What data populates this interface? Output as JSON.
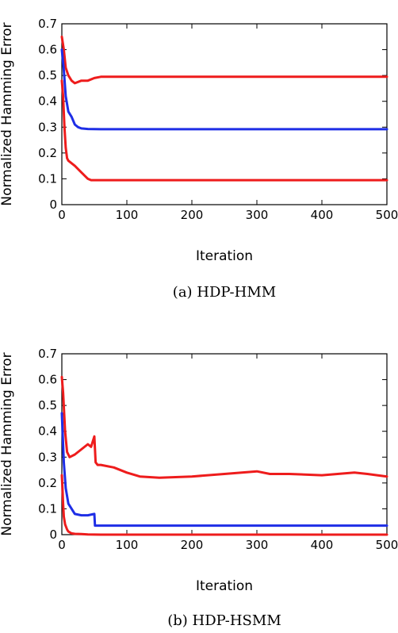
{
  "chart_data": [
    {
      "type": "line",
      "caption": "(a) HDP-HMM",
      "xlabel": "Iteration",
      "ylabel": "Normalized Hamming Error",
      "xlim": [
        0,
        500
      ],
      "ylim": [
        0,
        0.7
      ],
      "xticks": [
        0,
        100,
        200,
        300,
        400,
        500
      ],
      "yticks": [
        0,
        0.1,
        0.2,
        0.3,
        0.4,
        0.5,
        0.6,
        0.7
      ],
      "grid": false,
      "series": [
        {
          "color": "#ee1c1c",
          "x": [
            0,
            3,
            6,
            10,
            15,
            20,
            30,
            40,
            50,
            60,
            70,
            100,
            200,
            300,
            400,
            500
          ],
          "y": [
            0.65,
            0.6,
            0.53,
            0.5,
            0.48,
            0.47,
            0.48,
            0.48,
            0.49,
            0.495,
            0.495,
            0.495,
            0.495,
            0.495,
            0.495,
            0.495
          ]
        },
        {
          "color": "#1e2ee6",
          "x": [
            0,
            3,
            6,
            10,
            15,
            20,
            25,
            30,
            40,
            60,
            100,
            200,
            300,
            400,
            500
          ],
          "y": [
            0.6,
            0.52,
            0.42,
            0.36,
            0.34,
            0.31,
            0.3,
            0.295,
            0.293,
            0.292,
            0.292,
            0.292,
            0.292,
            0.292,
            0.292
          ]
        },
        {
          "color": "#ee1c1c",
          "x": [
            0,
            2,
            4,
            6,
            8,
            10,
            20,
            30,
            40,
            45,
            60,
            100,
            200,
            300,
            400,
            500
          ],
          "y": [
            0.48,
            0.42,
            0.3,
            0.22,
            0.18,
            0.17,
            0.15,
            0.125,
            0.1,
            0.095,
            0.095,
            0.095,
            0.095,
            0.095,
            0.095,
            0.095
          ]
        }
      ]
    },
    {
      "type": "line",
      "caption": "(b) HDP-HSMM",
      "xlabel": "Iteration",
      "ylabel": "Normalized Hamming Error",
      "xlim": [
        0,
        500
      ],
      "ylim": [
        0,
        0.7
      ],
      "xticks": [
        0,
        100,
        200,
        300,
        400,
        500
      ],
      "yticks": [
        0,
        0.1,
        0.2,
        0.3,
        0.4,
        0.5,
        0.6,
        0.7
      ],
      "grid": false,
      "series": [
        {
          "color": "#ee1c1c",
          "x": [
            0,
            2,
            5,
            8,
            12,
            20,
            30,
            40,
            45,
            50,
            52,
            55,
            60,
            80,
            100,
            120,
            150,
            200,
            250,
            300,
            320,
            350,
            400,
            450,
            470,
            500
          ],
          "y": [
            0.61,
            0.55,
            0.4,
            0.32,
            0.3,
            0.31,
            0.33,
            0.35,
            0.34,
            0.38,
            0.28,
            0.27,
            0.27,
            0.26,
            0.24,
            0.225,
            0.22,
            0.225,
            0.235,
            0.245,
            0.235,
            0.235,
            0.23,
            0.24,
            0.235,
            0.225
          ]
        },
        {
          "color": "#1e2ee6",
          "x": [
            0,
            3,
            6,
            10,
            15,
            20,
            30,
            40,
            50,
            51,
            60,
            100,
            200,
            300,
            400,
            500
          ],
          "y": [
            0.47,
            0.28,
            0.18,
            0.12,
            0.1,
            0.08,
            0.075,
            0.075,
            0.08,
            0.035,
            0.035,
            0.035,
            0.035,
            0.035,
            0.035,
            0.035
          ]
        },
        {
          "color": "#ee1c1c",
          "x": [
            0,
            1,
            2,
            3,
            5,
            8,
            10,
            15,
            20,
            30,
            40,
            60,
            100,
            200,
            300,
            400,
            500
          ],
          "y": [
            0.23,
            0.18,
            0.12,
            0.07,
            0.04,
            0.02,
            0.012,
            0.005,
            0.003,
            0.002,
            0.001,
            0.0,
            0.0,
            0.0,
            0.0,
            0.0,
            0.0
          ]
        }
      ]
    }
  ]
}
